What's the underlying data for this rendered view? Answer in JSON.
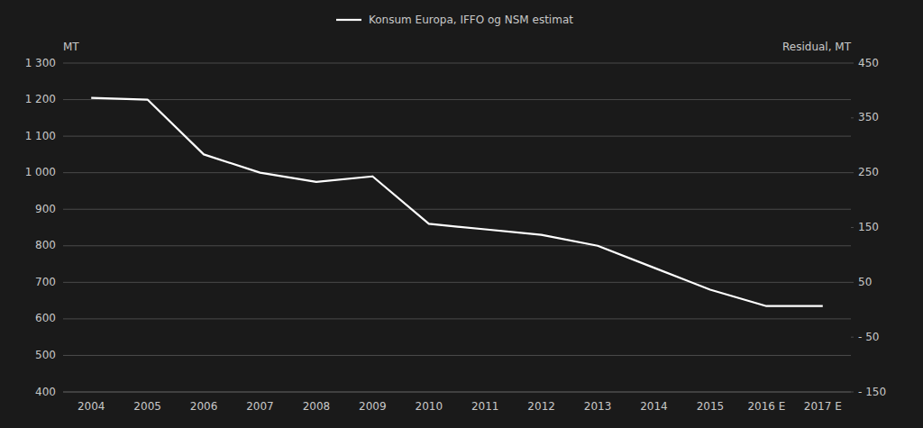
{
  "chart_data": {
    "type": "line",
    "ylabel": "MT",
    "y2label": "Residual, MT",
    "categories": [
      "2004",
      "2005",
      "2006",
      "2007",
      "2008",
      "2009",
      "2010",
      "2011",
      "2012",
      "2013",
      "2014",
      "2015",
      "2016 E",
      "2017 E"
    ],
    "series": [
      {
        "name": "Konsum Europa, IFFO og NSM estimat",
        "color": "#ffffff",
        "values": [
          1205,
          1200,
          1050,
          1000,
          975,
          990,
          860,
          845,
          830,
          800,
          740,
          680,
          635,
          635
        ]
      }
    ],
    "ylim": [
      400,
      1300
    ],
    "yticks": [
      400,
      500,
      600,
      700,
      800,
      900,
      {
        "value": 1000,
        "label": "1 000"
      },
      {
        "value": 1100,
        "label": "1 100"
      },
      {
        "value": 1200,
        "label": "1 200"
      },
      {
        "value": 1300,
        "label": "1 300"
      }
    ],
    "y2lim": [
      -150,
      450
    ],
    "y2ticks": [
      {
        "value": -150,
        "label": "- 150"
      },
      {
        "value": -50,
        "label": "- 50"
      },
      50,
      150,
      250,
      350,
      450
    ],
    "grid": true,
    "legend": "top"
  }
}
